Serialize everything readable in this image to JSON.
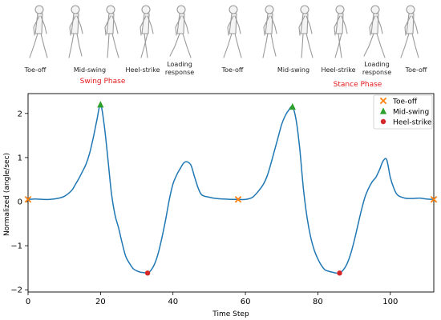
{
  "gait_strip": {
    "labels": [
      "Toe-off",
      "Mid-swing",
      "Heel-strike",
      "Loading\nresponse",
      "Toe-off",
      "Mid-swing",
      "Heel-strike",
      "Loading\nresponse",
      "Toe-off"
    ],
    "phases": [
      "Swing Phase",
      "Stance Phase"
    ],
    "phase_color": "#e31a1c",
    "figure_icon": "walking-person-silhouette"
  },
  "chart_data": {
    "type": "line",
    "title": "",
    "xlabel": "Time Step",
    "ylabel": "Normalized (angle/sec)",
    "xlim": [
      0,
      112
    ],
    "ylim": [
      -2.05,
      2.45
    ],
    "xticks": [
      0,
      20,
      40,
      60,
      80,
      100
    ],
    "yticks": [
      -2,
      -1,
      0,
      1,
      2
    ],
    "grid": false,
    "legend_position": "top-right",
    "series": [
      {
        "color": "#1f77b4",
        "x": [
          0,
          2,
          4,
          6,
          8,
          10,
          12,
          13,
          14,
          15,
          16,
          17,
          18,
          19,
          20,
          21,
          22,
          23,
          24,
          25,
          26,
          27,
          28,
          29,
          30,
          31,
          32,
          33,
          34,
          35,
          36,
          37,
          38,
          39,
          40,
          41,
          42,
          43,
          44,
          45,
          46,
          47,
          48,
          50,
          52,
          54,
          56,
          58,
          60,
          62,
          64,
          65,
          66,
          67,
          68,
          69,
          70,
          71,
          72,
          73,
          74,
          75,
          76,
          77,
          78,
          79,
          80,
          81,
          82,
          83,
          84,
          85,
          86,
          87,
          88,
          89,
          90,
          91,
          92,
          93,
          94,
          95,
          96,
          97,
          98,
          99,
          100,
          101,
          102,
          104,
          106,
          108,
          110,
          112
        ],
        "y": [
          0.05,
          0.06,
          0.05,
          0.05,
          0.07,
          0.12,
          0.25,
          0.38,
          0.52,
          0.68,
          0.85,
          1.1,
          1.45,
          1.85,
          2.2,
          1.75,
          1.0,
          0.2,
          -0.3,
          -0.6,
          -0.95,
          -1.25,
          -1.4,
          -1.52,
          -1.57,
          -1.6,
          -1.61,
          -1.62,
          -1.55,
          -1.4,
          -1.15,
          -0.8,
          -0.4,
          0.05,
          0.4,
          0.6,
          0.75,
          0.88,
          0.9,
          0.82,
          0.55,
          0.3,
          0.15,
          0.1,
          0.07,
          0.06,
          0.05,
          0.05,
          0.05,
          0.1,
          0.28,
          0.4,
          0.58,
          0.85,
          1.15,
          1.45,
          1.75,
          1.95,
          2.08,
          2.15,
          1.85,
          1.2,
          0.3,
          -0.35,
          -0.8,
          -1.1,
          -1.3,
          -1.45,
          -1.55,
          -1.58,
          -1.6,
          -1.62,
          -1.62,
          -1.55,
          -1.42,
          -1.2,
          -0.9,
          -0.55,
          -0.2,
          0.1,
          0.3,
          0.45,
          0.55,
          0.72,
          0.92,
          0.95,
          0.55,
          0.3,
          0.15,
          0.08,
          0.07,
          0.08,
          0.06,
          0.05
        ]
      }
    ],
    "markers": [
      {
        "name": "Toe-off",
        "symbol": "x",
        "color": "#ff7f0e",
        "x": [
          0,
          58,
          112
        ],
        "y": [
          0.05,
          0.05,
          0.05
        ]
      },
      {
        "name": "Mid-swing",
        "symbol": "triangle",
        "color": "#2ca02c",
        "x": [
          20,
          73
        ],
        "y": [
          2.2,
          2.15
        ]
      },
      {
        "name": "Heel-strike",
        "symbol": "circle",
        "color": "#d62728",
        "x": [
          33,
          86
        ],
        "y": [
          -1.62,
          -1.62
        ]
      }
    ]
  }
}
